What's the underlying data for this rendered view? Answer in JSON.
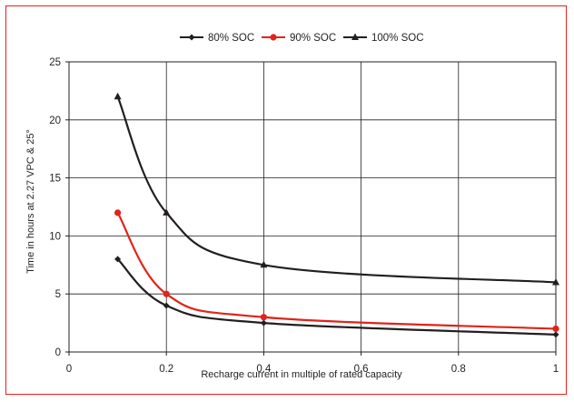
{
  "chart_data": {
    "type": "line",
    "title": "",
    "xlabel": "Recharge current in multiple of rated capacity",
    "ylabel": "Time in hours at 2.27 VPC & 25°",
    "xlim": [
      0,
      1
    ],
    "ylim": [
      0,
      25
    ],
    "x_ticks": [
      0,
      0.2,
      0.4,
      0.6,
      0.8,
      1
    ],
    "x_tick_labels": [
      "0",
      "0.2",
      "0.4",
      "0.6",
      "0.8",
      "1"
    ],
    "y_ticks": [
      0,
      5,
      10,
      15,
      20,
      25
    ],
    "y_tick_labels": [
      "0",
      "5",
      "10",
      "15",
      "20",
      "25"
    ],
    "grid": true,
    "legend_position": "top-center",
    "series": [
      {
        "name": "80% SOC",
        "color": "#231f20",
        "marker": "diamond",
        "x": [
          0.1,
          0.2,
          0.4,
          1
        ],
        "y": [
          8,
          4,
          2.5,
          1.5
        ]
      },
      {
        "name": "90% SOC",
        "color": "#e2231a",
        "marker": "circle",
        "x": [
          0.1,
          0.2,
          0.4,
          1
        ],
        "y": [
          12,
          5,
          3,
          2
        ]
      },
      {
        "name": "100% SOC",
        "color": "#231f20",
        "marker": "triangle",
        "x": [
          0.1,
          0.2,
          0.4,
          1
        ],
        "y": [
          22,
          12,
          7.5,
          6
        ]
      }
    ]
  }
}
